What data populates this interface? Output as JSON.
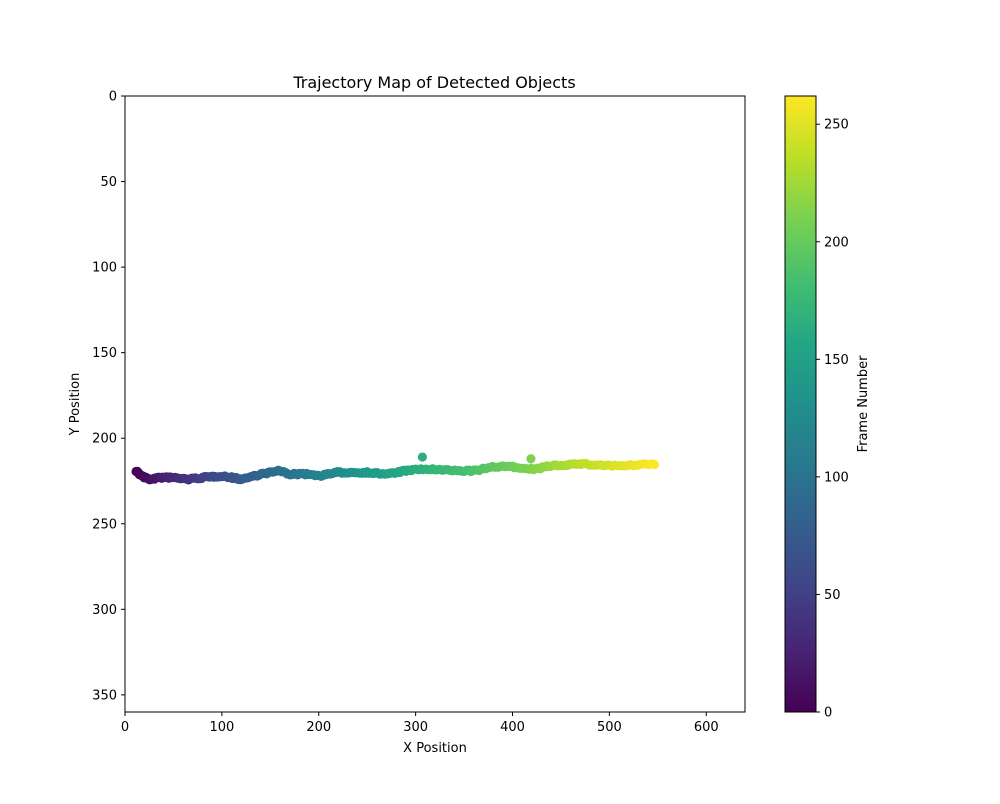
{
  "chart_data": {
    "type": "scatter",
    "title": "Trajectory Map of Detected Objects",
    "xlabel": "X Position",
    "ylabel": "Y Position",
    "xlim": [
      0,
      640
    ],
    "ylim": [
      360,
      0
    ],
    "y_axis_inverted": true,
    "xticks": [
      0,
      100,
      200,
      300,
      400,
      500,
      600
    ],
    "yticks": [
      0,
      50,
      100,
      150,
      200,
      250,
      300,
      350
    ],
    "grid": false,
    "legend": "none",
    "colorbar": {
      "label": "Frame Number",
      "colormap": "viridis",
      "range": [
        0,
        262
      ],
      "ticks": [
        0,
        50,
        100,
        150,
        200,
        250
      ]
    },
    "trajectory_keypoints": [
      {
        "x": 12,
        "y": 219,
        "frame": 0
      },
      {
        "x": 15,
        "y": 221,
        "frame": 3
      },
      {
        "x": 20,
        "y": 223,
        "frame": 7
      },
      {
        "x": 25,
        "y": 224,
        "frame": 10
      },
      {
        "x": 35,
        "y": 223,
        "frame": 18
      },
      {
        "x": 50,
        "y": 223,
        "frame": 30
      },
      {
        "x": 65,
        "y": 224,
        "frame": 40
      },
      {
        "x": 80,
        "y": 223,
        "frame": 50
      },
      {
        "x": 100,
        "y": 222,
        "frame": 62
      },
      {
        "x": 110,
        "y": 223,
        "frame": 68
      },
      {
        "x": 120,
        "y": 224,
        "frame": 75
      },
      {
        "x": 140,
        "y": 221,
        "frame": 85
      },
      {
        "x": 160,
        "y": 219,
        "frame": 95
      },
      {
        "x": 170,
        "y": 221,
        "frame": 100
      },
      {
        "x": 190,
        "y": 221,
        "frame": 110
      },
      {
        "x": 200,
        "y": 222,
        "frame": 115
      },
      {
        "x": 220,
        "y": 220,
        "frame": 125
      },
      {
        "x": 250,
        "y": 220,
        "frame": 140
      },
      {
        "x": 270,
        "y": 221,
        "frame": 150
      },
      {
        "x": 290,
        "y": 219,
        "frame": 160
      },
      {
        "x": 310,
        "y": 218,
        "frame": 168
      },
      {
        "x": 340,
        "y": 219,
        "frame": 180
      },
      {
        "x": 360,
        "y": 219,
        "frame": 188
      },
      {
        "x": 380,
        "y": 217,
        "frame": 196
      },
      {
        "x": 395,
        "y": 216,
        "frame": 202
      },
      {
        "x": 410,
        "y": 218,
        "frame": 208
      },
      {
        "x": 425,
        "y": 218,
        "frame": 214
      },
      {
        "x": 440,
        "y": 216,
        "frame": 222
      },
      {
        "x": 470,
        "y": 215,
        "frame": 235
      },
      {
        "x": 500,
        "y": 216,
        "frame": 245
      },
      {
        "x": 520,
        "y": 216,
        "frame": 252
      },
      {
        "x": 547,
        "y": 215,
        "frame": 262
      }
    ],
    "outliers": [
      {
        "x": 307,
        "y": 211,
        "frame": 165
      },
      {
        "x": 419,
        "y": 212,
        "frame": 212
      }
    ]
  }
}
